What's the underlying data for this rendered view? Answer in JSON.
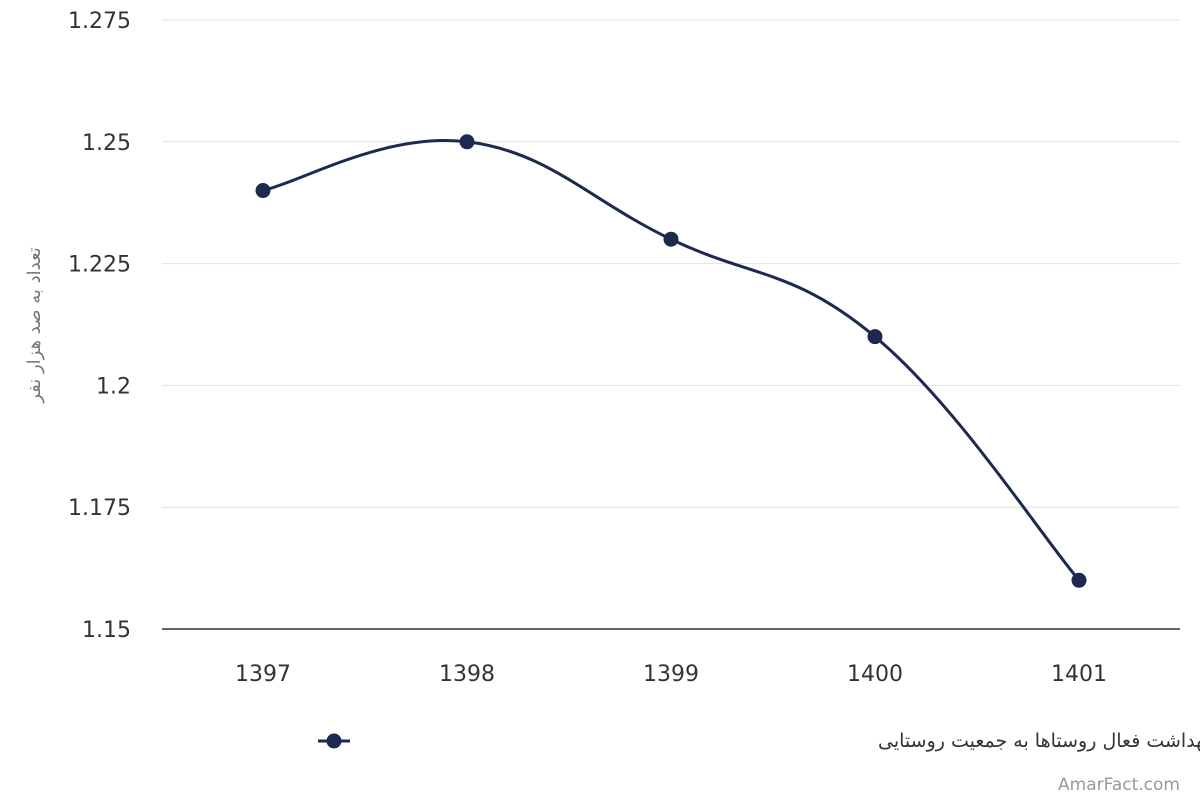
{
  "chart_data": {
    "type": "line",
    "x": [
      "1397",
      "1398",
      "1399",
      "1400",
      "1401"
    ],
    "series": [
      {
        "name": "نسبت تعداد خانه‌های بهداشت فعال روستاها به جمعیت روستایی",
        "values": [
          1.24,
          1.25,
          1.23,
          1.21,
          1.16
        ],
        "color": "#1b2a4e"
      }
    ],
    "ylabel": "تعداد به صد هزار نفر",
    "ylim": [
      1.15,
      1.275
    ],
    "yticks": [
      1.15,
      1.175,
      1.2,
      1.225,
      1.25,
      1.275
    ],
    "ytick_labels": [
      "1.15",
      "1.175",
      "1.2",
      "1.225",
      "1.25",
      "1.275"
    ],
    "grid": true,
    "legend": "bottom-center",
    "smooth": true
  },
  "credit": "AmarFact.com"
}
